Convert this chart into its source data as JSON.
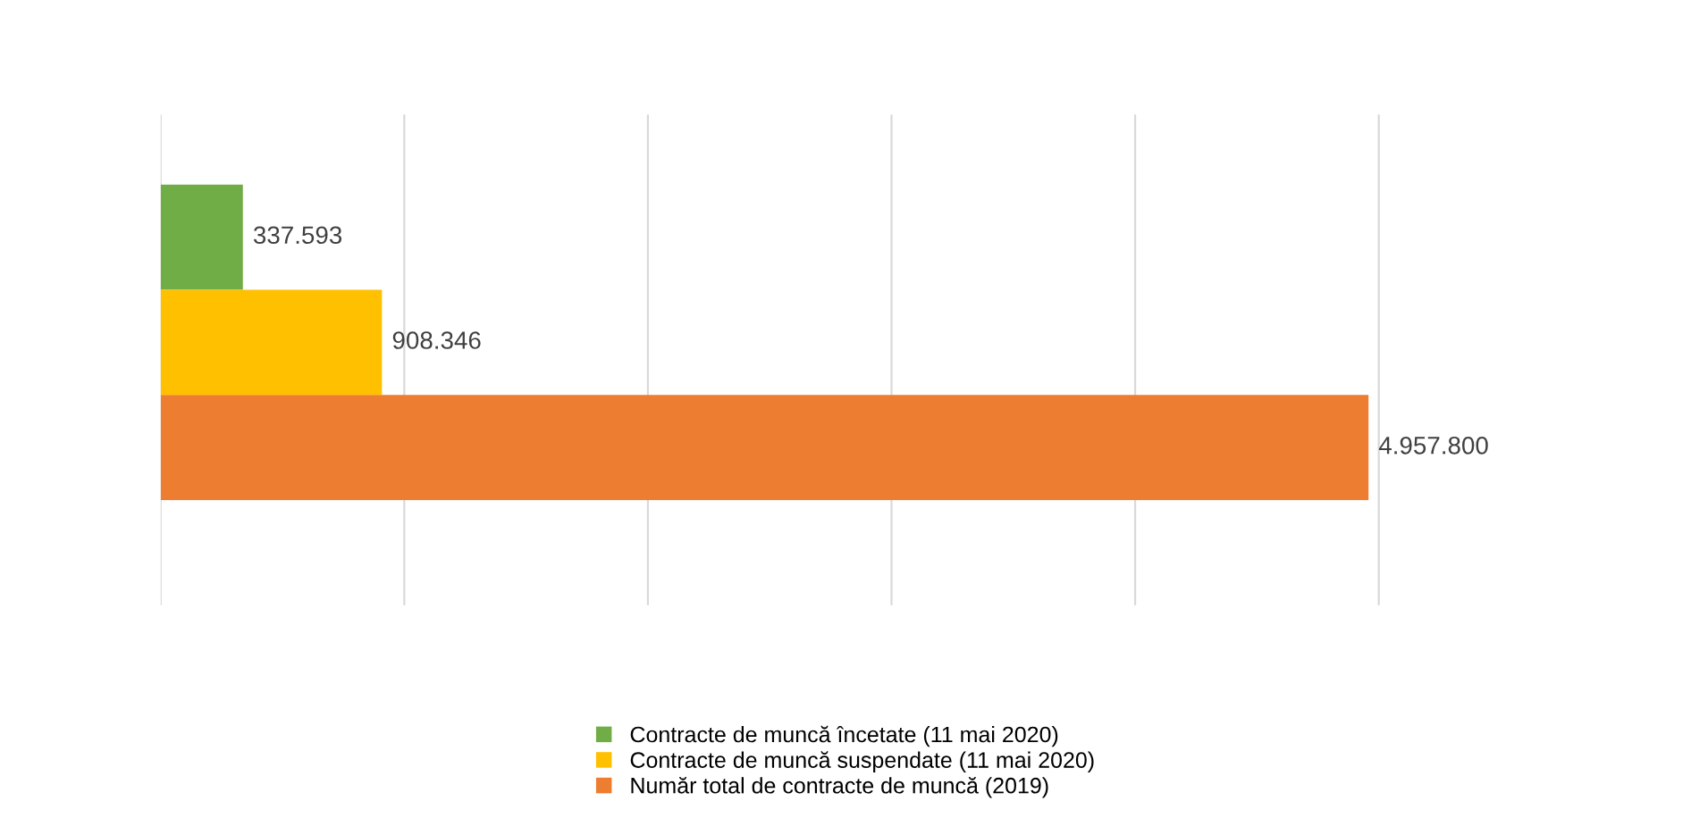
{
  "chart_data": {
    "type": "bar",
    "orientation": "horizontal",
    "categories": [
      null
    ],
    "series": [
      {
        "name": "Contracte de muncă încetate (11 mai 2020)",
        "color": "#70ad47",
        "values": [
          337593
        ],
        "value_labels": [
          "337.593"
        ]
      },
      {
        "name": "Contracte de muncă suspendate (11 mai 2020)",
        "color": "#ffc000",
        "values": [
          908346
        ],
        "value_labels": [
          "908.346"
        ]
      },
      {
        "name": "Număr total de contracte de muncă (2019)",
        "color": "#ed7d31",
        "values": [
          4957800
        ],
        "value_labels": [
          "4.957.800"
        ]
      }
    ],
    "grid": "x",
    "legend": "bottom",
    "tick_labels": false
  }
}
